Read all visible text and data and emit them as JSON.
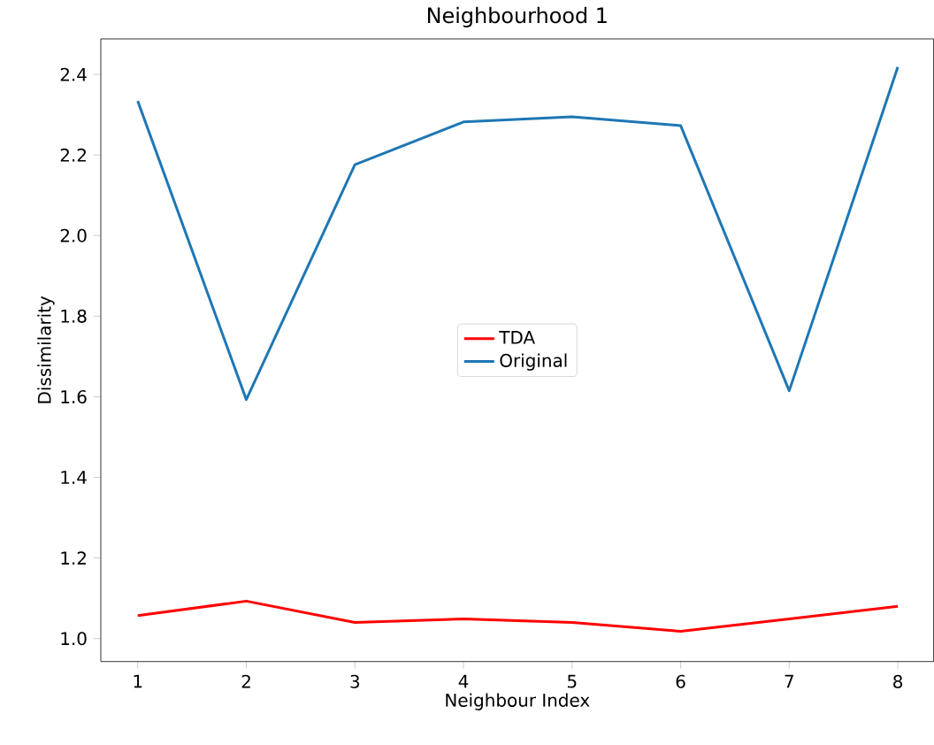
{
  "chart_data": {
    "type": "line",
    "title": "Neighbourhood 1",
    "xlabel": "Neighbour Index",
    "ylabel": "Dissimilarity",
    "x": [
      1,
      2,
      3,
      4,
      5,
      6,
      7,
      8
    ],
    "series": [
      {
        "name": "TDA",
        "color": "#ff0000",
        "values": [
          1.057,
          1.093,
          1.04,
          1.049,
          1.04,
          1.018,
          1.049,
          1.08
        ]
      },
      {
        "name": "Original",
        "color": "#1f77b4",
        "values": [
          2.334,
          1.593,
          2.176,
          2.282,
          2.295,
          2.273,
          1.615,
          2.418
        ]
      }
    ],
    "xlim": [
      0.66,
      8.33
    ],
    "ylim": [
      0.943,
      2.488
    ],
    "xticks": [
      1,
      2,
      3,
      4,
      5,
      6,
      7,
      8
    ],
    "yticks": [
      {
        "value": 1.0,
        "label": "1.0"
      },
      {
        "value": 1.2,
        "label": "1.2"
      },
      {
        "value": 1.4,
        "label": "1.4"
      },
      {
        "value": 1.6,
        "label": "1.6"
      },
      {
        "value": 1.8,
        "label": "1.8"
      },
      {
        "value": 2.0,
        "label": "2.0"
      },
      {
        "value": 2.2,
        "label": "2.2"
      },
      {
        "value": 2.4,
        "label": "2.4"
      }
    ],
    "grid": false,
    "legend": "center",
    "marker": "none",
    "line_style": "solid"
  }
}
